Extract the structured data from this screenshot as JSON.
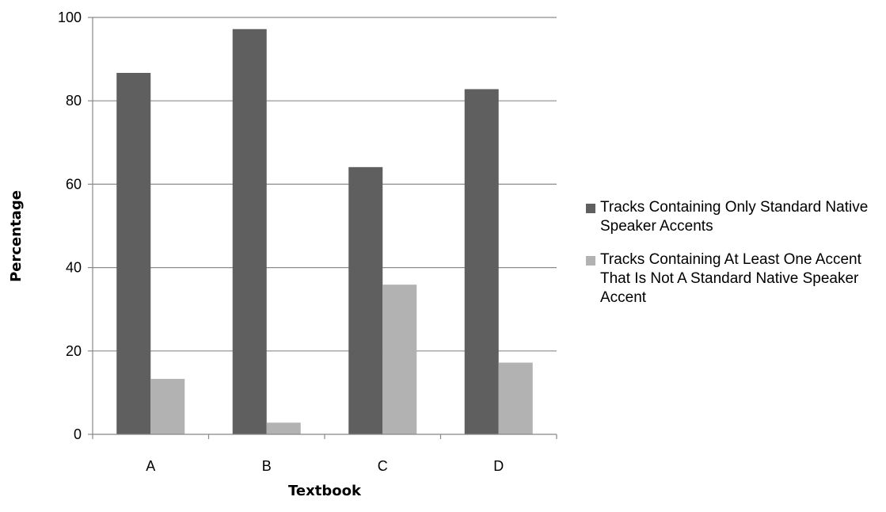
{
  "chart_data": {
    "type": "bar",
    "categories": [
      "A",
      "B",
      "C",
      "D"
    ],
    "series": [
      {
        "name": "Tracks Containing Only Standard Native Speaker Accents",
        "values": [
          86.7,
          97.2,
          64.1,
          82.8
        ],
        "color": "#5f5f5f"
      },
      {
        "name": "Tracks Containing At Least One Accent That Is Not A Standard Native Speaker Accent",
        "values": [
          13.3,
          2.8,
          35.9,
          17.2
        ],
        "color": "#b2b2b2"
      }
    ],
    "xlabel": "Textbook",
    "ylabel": "Percentage",
    "ylim": [
      0,
      100
    ],
    "yticks": [
      0,
      20,
      40,
      60,
      80,
      100
    ],
    "grid": true,
    "legend_position": "right"
  }
}
